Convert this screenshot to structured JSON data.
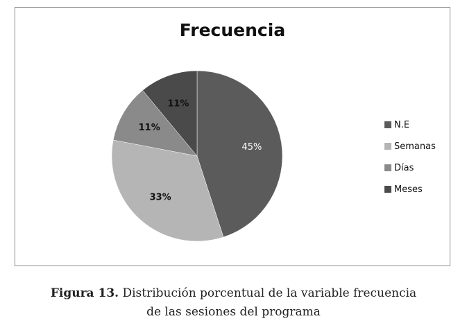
{
  "chart_data": {
    "type": "pie",
    "title": "Frecuencia",
    "categories": [
      "N.E",
      "Semanas",
      "Días",
      "Meses"
    ],
    "values": [
      45,
      33,
      11,
      11
    ],
    "data_labels": [
      "45%",
      "33%",
      "11%",
      "11%"
    ],
    "colors": [
      "#5b5b5b",
      "#b5b5b5",
      "#8a8a8a",
      "#4a4a4a"
    ],
    "label_colors": [
      "#ffffff",
      "#111111",
      "#111111",
      "#111111"
    ],
    "start_angle_deg": 0,
    "direction": "clockwise",
    "legend_position": "right"
  },
  "caption": {
    "label": "Figura 13.",
    "line1": " Distribución porcentual de la variable frecuencia",
    "line2": "de las sesiones del programa"
  }
}
